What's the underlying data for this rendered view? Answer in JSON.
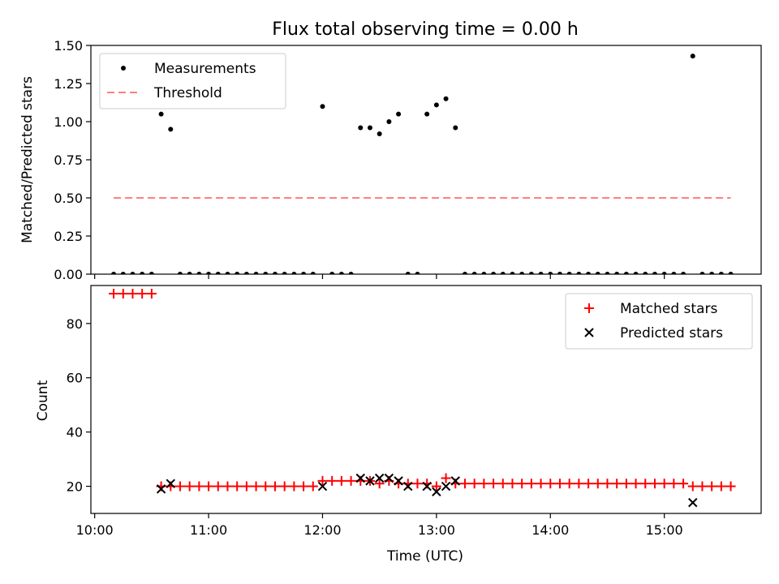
{
  "chart_data": [
    {
      "type": "scatter",
      "title": "Flux total observing time = 0.00 h",
      "xlabel": "",
      "ylabel": "Matched/Predicted stars",
      "ylim": [
        0,
        1.5
      ],
      "yticks": [
        "0.00",
        "0.25",
        "0.50",
        "0.75",
        "1.00",
        "1.25",
        "1.50"
      ],
      "xlim": [
        "09:58",
        "15:51"
      ],
      "legend_position": "upper left",
      "series": [
        {
          "name": "Measurements",
          "color": "#000000",
          "marker": "dot",
          "points": [
            [
              "10:10",
              0.0
            ],
            [
              "10:15",
              0.0
            ],
            [
              "10:20",
              0.0
            ],
            [
              "10:25",
              0.0
            ],
            [
              "10:30",
              0.0
            ],
            [
              "10:35",
              1.05
            ],
            [
              "10:40",
              0.95
            ],
            [
              "10:45",
              0.0
            ],
            [
              "10:50",
              0.0
            ],
            [
              "10:55",
              0.0
            ],
            [
              "11:00",
              0.0
            ],
            [
              "11:05",
              0.0
            ],
            [
              "11:10",
              0.0
            ],
            [
              "11:15",
              0.0
            ],
            [
              "11:20",
              0.0
            ],
            [
              "11:25",
              0.0
            ],
            [
              "11:30",
              0.0
            ],
            [
              "11:35",
              0.0
            ],
            [
              "11:40",
              0.0
            ],
            [
              "11:45",
              0.0
            ],
            [
              "11:50",
              0.0
            ],
            [
              "11:55",
              0.0
            ],
            [
              "12:00",
              1.1
            ],
            [
              "12:05",
              0.0
            ],
            [
              "12:10",
              0.0
            ],
            [
              "12:15",
              0.0
            ],
            [
              "12:20",
              0.96
            ],
            [
              "12:25",
              0.96
            ],
            [
              "12:30",
              0.92
            ],
            [
              "12:35",
              1.0
            ],
            [
              "12:40",
              1.05
            ],
            [
              "12:45",
              0.0
            ],
            [
              "12:50",
              0.0
            ],
            [
              "12:55",
              1.05
            ],
            [
              "13:00",
              1.11
            ],
            [
              "13:05",
              1.15
            ],
            [
              "13:10",
              0.96
            ],
            [
              "13:15",
              0.0
            ],
            [
              "13:20",
              0.0
            ],
            [
              "13:25",
              0.0
            ],
            [
              "13:30",
              0.0
            ],
            [
              "13:35",
              0.0
            ],
            [
              "13:40",
              0.0
            ],
            [
              "13:45",
              0.0
            ],
            [
              "13:50",
              0.0
            ],
            [
              "13:55",
              0.0
            ],
            [
              "14:00",
              0.0
            ],
            [
              "14:05",
              0.0
            ],
            [
              "14:10",
              0.0
            ],
            [
              "14:15",
              0.0
            ],
            [
              "14:20",
              0.0
            ],
            [
              "14:25",
              0.0
            ],
            [
              "14:30",
              0.0
            ],
            [
              "14:35",
              0.0
            ],
            [
              "14:40",
              0.0
            ],
            [
              "14:45",
              0.0
            ],
            [
              "14:50",
              0.0
            ],
            [
              "14:55",
              0.0
            ],
            [
              "15:00",
              0.0
            ],
            [
              "15:05",
              0.0
            ],
            [
              "15:10",
              0.0
            ],
            [
              "15:15",
              1.43
            ],
            [
              "15:20",
              0.0
            ],
            [
              "15:25",
              0.0
            ],
            [
              "15:30",
              0.0
            ],
            [
              "15:35",
              0.0
            ]
          ]
        },
        {
          "name": "Threshold",
          "color": "#ff7f7f",
          "style": "dashed",
          "x": [
            "10:10",
            "15:35"
          ],
          "y": [
            0.5,
            0.5
          ]
        }
      ]
    },
    {
      "type": "scatter",
      "title": "",
      "xlabel": "Time (UTC)",
      "ylabel": "Count",
      "ylim": [
        10,
        94
      ],
      "yticks": [
        "20",
        "40",
        "60",
        "80"
      ],
      "xlim": [
        "09:58",
        "15:51"
      ],
      "xticks": [
        "10:00",
        "11:00",
        "12:00",
        "13:00",
        "14:00",
        "15:00"
      ],
      "legend_position": "upper right",
      "series": [
        {
          "name": "Matched stars",
          "color": "#ff0000",
          "marker": "plus",
          "points": [
            [
              "10:10",
              91
            ],
            [
              "10:15",
              91
            ],
            [
              "10:20",
              91
            ],
            [
              "10:25",
              91
            ],
            [
              "10:30",
              91
            ],
            [
              "10:35",
              20
            ],
            [
              "10:40",
              20
            ],
            [
              "10:45",
              20
            ],
            [
              "10:50",
              20
            ],
            [
              "10:55",
              20
            ],
            [
              "11:00",
              20
            ],
            [
              "11:05",
              20
            ],
            [
              "11:10",
              20
            ],
            [
              "11:15",
              20
            ],
            [
              "11:20",
              20
            ],
            [
              "11:25",
              20
            ],
            [
              "11:30",
              20
            ],
            [
              "11:35",
              20
            ],
            [
              "11:40",
              20
            ],
            [
              "11:45",
              20
            ],
            [
              "11:50",
              20
            ],
            [
              "11:55",
              20
            ],
            [
              "12:00",
              22
            ],
            [
              "12:05",
              22
            ],
            [
              "12:10",
              22
            ],
            [
              "12:15",
              22
            ],
            [
              "12:20",
              22
            ],
            [
              "12:25",
              22
            ],
            [
              "12:30",
              21
            ],
            [
              "12:35",
              22
            ],
            [
              "12:40",
              21
            ],
            [
              "12:45",
              21
            ],
            [
              "12:50",
              21
            ],
            [
              "12:55",
              21
            ],
            [
              "13:00",
              20
            ],
            [
              "13:05",
              23
            ],
            [
              "13:10",
              21
            ],
            [
              "13:15",
              21
            ],
            [
              "13:20",
              21
            ],
            [
              "13:25",
              21
            ],
            [
              "13:30",
              21
            ],
            [
              "13:35",
              21
            ],
            [
              "13:40",
              21
            ],
            [
              "13:45",
              21
            ],
            [
              "13:50",
              21
            ],
            [
              "13:55",
              21
            ],
            [
              "14:00",
              21
            ],
            [
              "14:05",
              21
            ],
            [
              "14:10",
              21
            ],
            [
              "14:15",
              21
            ],
            [
              "14:20",
              21
            ],
            [
              "14:25",
              21
            ],
            [
              "14:30",
              21
            ],
            [
              "14:35",
              21
            ],
            [
              "14:40",
              21
            ],
            [
              "14:45",
              21
            ],
            [
              "14:50",
              21
            ],
            [
              "14:55",
              21
            ],
            [
              "15:00",
              21
            ],
            [
              "15:05",
              21
            ],
            [
              "15:10",
              21
            ],
            [
              "15:15",
              20
            ],
            [
              "15:20",
              20
            ],
            [
              "15:25",
              20
            ],
            [
              "15:30",
              20
            ],
            [
              "15:35",
              20
            ]
          ]
        },
        {
          "name": "Predicted stars",
          "color": "#000000",
          "marker": "x",
          "points": [
            [
              "10:35",
              19
            ],
            [
              "10:40",
              21
            ],
            [
              "12:00",
              20
            ],
            [
              "12:20",
              23
            ],
            [
              "12:25",
              22
            ],
            [
              "12:30",
              23
            ],
            [
              "12:35",
              23
            ],
            [
              "12:40",
              22
            ],
            [
              "12:45",
              20
            ],
            [
              "12:55",
              20
            ],
            [
              "13:00",
              18
            ],
            [
              "13:05",
              20
            ],
            [
              "13:10",
              22
            ],
            [
              "15:15",
              14
            ]
          ]
        }
      ]
    }
  ]
}
